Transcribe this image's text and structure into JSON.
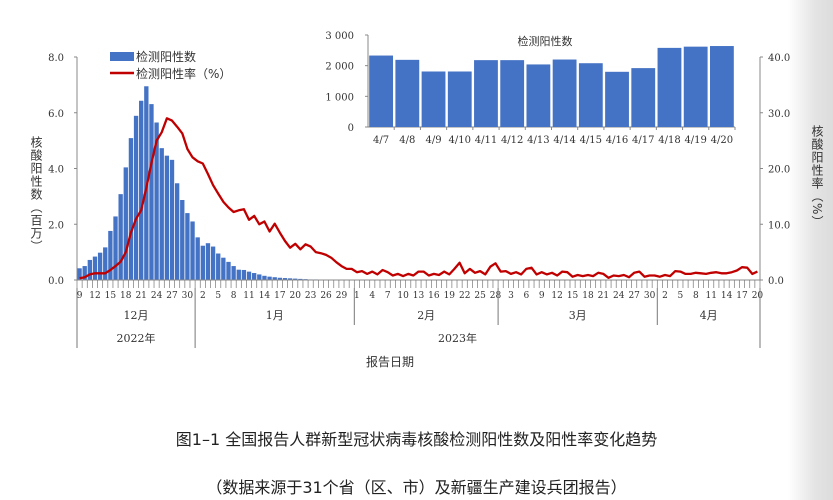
{
  "chart_data": [
    {
      "type": "bar+line",
      "legend": {
        "position": "top-left",
        "entries": [
          "检测阳性数",
          "检测阳性率（%）"
        ]
      },
      "ylabel": "核酸阳性数（百万）",
      "ylabel_right": "核酸阳性率（%）",
      "xlabel": "报告日期",
      "ylim": [
        0,
        8
      ],
      "ylim_right": [
        0,
        40
      ],
      "yticks": [
        "0.0",
        "2.0",
        "4.0",
        "6.0",
        "8.0"
      ],
      "yticks_right": [
        "0.0",
        "10.0",
        "20.0",
        "30.0",
        "40.0"
      ],
      "x_tick_labels": [
        "9",
        "12",
        "15",
        "18",
        "21",
        "24",
        "27",
        "30",
        "2",
        "5",
        "8",
        "11",
        "14",
        "17",
        "20",
        "23",
        "26",
        "29",
        "1",
        "4",
        "7",
        "10",
        "13",
        "16",
        "19",
        "22",
        "25",
        "28",
        "3",
        "6",
        "9",
        "12",
        "15",
        "18",
        "21",
        "24",
        "27",
        "30",
        "2",
        "5",
        "8",
        "11",
        "14",
        "17",
        "20"
      ],
      "months": [
        {
          "label": "12月",
          "days": 23
        },
        {
          "label": "1月",
          "days": 31
        },
        {
          "label": "2月",
          "days": 28
        },
        {
          "label": "3月",
          "days": 31
        },
        {
          "label": "4月",
          "days": 20
        }
      ],
      "years": [
        {
          "label": "2022年",
          "days": 23
        },
        {
          "label": "2023年",
          "days": 110
        }
      ],
      "series": [
        {
          "name": "检测阳性数",
          "kind": "bar",
          "color": "#4472C4",
          "axis": "left",
          "values": [
            0.42,
            0.5,
            0.72,
            0.84,
            0.98,
            1.17,
            1.76,
            2.28,
            3.08,
            4.04,
            5.09,
            5.89,
            6.43,
            6.95,
            6.31,
            5.65,
            4.73,
            4.46,
            4.31,
            3.47,
            2.87,
            2.4,
            2.1,
            1.53,
            1.23,
            1.32,
            1.2,
            0.95,
            0.8,
            0.65,
            0.5,
            0.37,
            0.36,
            0.3,
            0.25,
            0.2,
            0.15,
            0.12,
            0.1,
            0.08,
            0.07,
            0.06,
            0.05,
            0.04,
            0.03,
            0.02,
            0.02,
            0.01,
            0.01,
            0.01,
            0.01,
            0.01,
            0.005,
            0.005,
            0.003,
            0.003,
            0.003,
            0.003,
            0.003,
            0.003,
            0.003,
            0.003,
            0.003,
            0.003,
            0.003,
            0.003,
            0.003,
            0.003,
            0.003,
            0.003,
            0.003,
            0.003,
            0.003,
            0.003,
            0.003,
            0.003,
            0.003,
            0.003,
            0.003,
            0.003,
            0.003,
            0.003,
            0.002,
            0.002,
            0.002,
            0.002,
            0.002,
            0.002,
            0.002,
            0.002,
            0.002,
            0.002,
            0.002,
            0.002,
            0.002,
            0.002,
            0.002,
            0.002,
            0.002,
            0.002,
            0.002,
            0.002,
            0.002,
            0.002,
            0.002,
            0.002,
            0.002,
            0.002,
            0.002,
            0.002,
            0.002,
            0.002,
            0.002,
            0.002,
            0.002,
            0.002,
            0.002,
            0.002,
            0.002,
            0.002,
            0.002,
            0.002,
            0.002,
            0.002,
            0.002,
            0.002,
            0.002,
            0.002,
            0.002,
            0.002,
            0.003,
            0.003,
            0.003
          ]
        },
        {
          "name": "检测阳性率（%）",
          "kind": "line",
          "color": "#C00000",
          "axis": "right",
          "values": [
            0.3,
            0.5,
            1.0,
            1.2,
            1.2,
            1.2,
            1.8,
            2.5,
            3.3,
            5.0,
            8.5,
            11.0,
            12.5,
            16.5,
            21.0,
            25.0,
            26.5,
            29.0,
            28.6,
            27.5,
            26.3,
            23.5,
            22.0,
            21.3,
            20.9,
            19.0,
            17.0,
            15.5,
            14.0,
            13.0,
            12.2,
            12.5,
            12.7,
            10.8,
            11.5,
            10.0,
            10.5,
            8.7,
            10.1,
            8.5,
            7.0,
            5.8,
            6.5,
            5.5,
            6.4,
            6.0,
            5.0,
            4.8,
            4.5,
            4.0,
            3.2,
            2.5,
            2.0,
            2.0,
            1.4,
            1.6,
            1.1,
            1.5,
            1.0,
            1.8,
            1.4,
            0.8,
            1.1,
            0.7,
            1.1,
            0.8,
            1.5,
            1.5,
            0.8,
            1.1,
            0.9,
            1.5,
            1.0,
            2.0,
            3.1,
            1.2,
            2.0,
            1.3,
            1.6,
            1.0,
            2.4,
            3.0,
            1.5,
            1.6,
            1.1,
            1.4,
            1.0,
            2.0,
            2.2,
            1.0,
            1.4,
            1.0,
            1.3,
            0.8,
            1.5,
            1.4,
            0.6,
            0.9,
            0.7,
            0.9,
            0.7,
            1.3,
            1.1,
            0.4,
            0.8,
            0.7,
            0.9,
            0.5,
            1.3,
            1.5,
            0.6,
            0.8,
            0.8,
            0.6,
            0.9,
            0.7,
            1.6,
            1.5,
            1.1,
            1.1,
            1.3,
            1.2,
            1.1,
            1.3,
            1.4,
            1.2,
            1.2,
            1.4,
            1.7,
            2.3,
            2.2,
            1.1,
            1.5
          ]
        }
      ]
    },
    {
      "type": "bar",
      "title": "检测阳性数",
      "categories": [
        "4/7",
        "4/8",
        "4/9",
        "4/10",
        "4/11",
        "4/12",
        "4/13",
        "4/14",
        "4/15",
        "4/16",
        "4/17",
        "4/18",
        "4/19",
        "4/20"
      ],
      "values": [
        2330,
        2190,
        1810,
        1810,
        2180,
        2180,
        2040,
        2200,
        2080,
        1800,
        1920,
        2580,
        2620,
        2640
      ],
      "ylim": [
        0,
        3000
      ],
      "yticks": [
        "0",
        "1 000",
        "2 000",
        "3 000"
      ],
      "color": "#4472C4"
    }
  ],
  "caption": {
    "title": "图1–1 全国报告人群新型冠状病毒核酸检测阳性数及阳性率变化趋势",
    "source": "（数据来源于31个省（区、市）及新疆生产建设兵团报告）"
  }
}
